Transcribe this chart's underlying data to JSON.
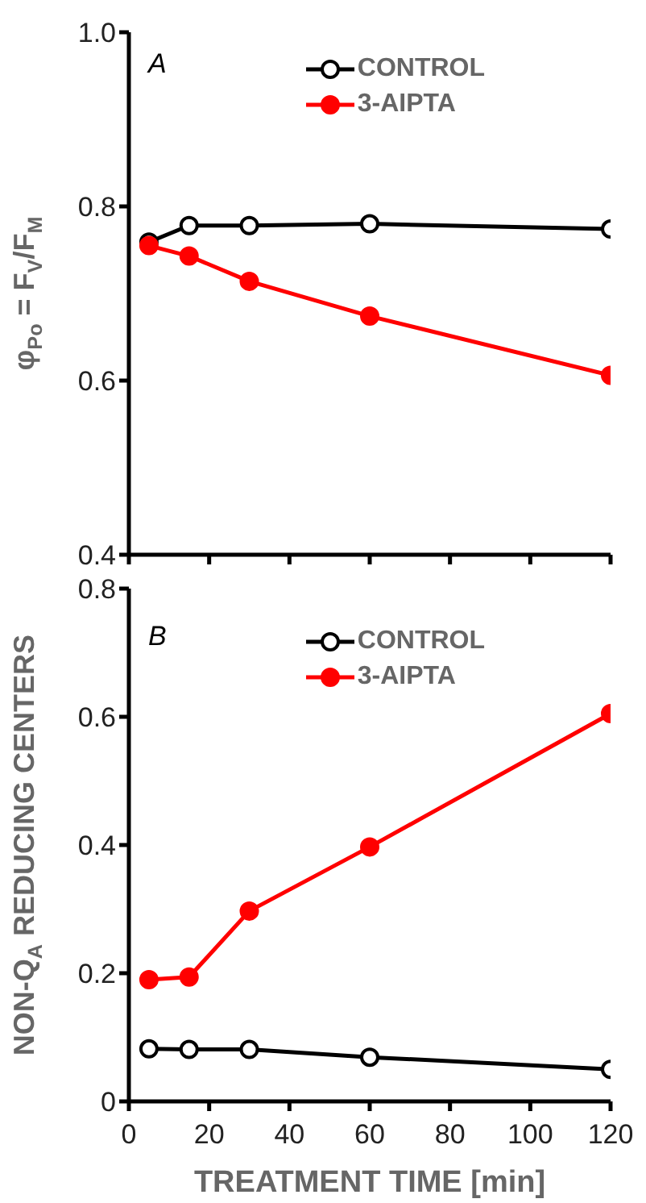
{
  "chart_data": [
    {
      "type": "line",
      "ylabel": "φ$_{Po}$ = F$_{V}$/F$_{M}$",
      "annotations": [
        "A"
      ],
      "x": [
        5,
        15,
        30,
        60,
        120
      ],
      "series": [
        {
          "name": "CONTROL",
          "color": "#000000",
          "values": [
            0.759,
            0.778,
            0.778,
            0.78,
            0.774
          ]
        },
        {
          "name": "3-AIPTA",
          "color": "#ff0000",
          "values": [
            0.755,
            0.743,
            0.714,
            0.674,
            0.606
          ]
        }
      ],
      "xlim": [
        0,
        120
      ],
      "xticks": [
        0,
        20,
        40,
        60,
        80,
        100,
        120
      ],
      "ylim": [
        0.4,
        1.0
      ],
      "yticks": [
        {
          "value": 0.4,
          "label": "0.4"
        },
        {
          "value": 0.6,
          "label": "0.6"
        },
        {
          "value": 0.8,
          "label": "0.8"
        },
        {
          "value": 1.0,
          "label": "1.0"
        }
      ],
      "tick_labels": "y",
      "marker": "circle",
      "legend": "top right"
    },
    {
      "type": "line",
      "xlabel": "TREATMENT TIME [min]",
      "ylabel": "NON-Q$_{A}$ REDUCING CENTERS",
      "annotations": [
        "B"
      ],
      "x": [
        5,
        15,
        30,
        60,
        120
      ],
      "series": [
        {
          "name": "CONTROL",
          "color": "#000000",
          "values": [
            0.082,
            0.081,
            0.081,
            0.069,
            0.05
          ]
        },
        {
          "name": "3-AIPTA",
          "color": "#ff0000",
          "values": [
            0.19,
            0.194,
            0.297,
            0.397,
            0.605
          ]
        }
      ],
      "xlim": [
        0,
        120
      ],
      "xticks": [
        0,
        20,
        40,
        60,
        80,
        100,
        120
      ],
      "ylim": [
        0,
        0.8
      ],
      "yticks": [
        0,
        {
          "value": 0.2,
          "label": "0.2"
        },
        {
          "value": 0.4,
          "label": "0.4"
        },
        {
          "value": 0.6,
          "label": "0.6"
        },
        {
          "value": 0.8,
          "label": "0.8"
        }
      ],
      "marker": "circle",
      "legend": "top right"
    }
  ]
}
